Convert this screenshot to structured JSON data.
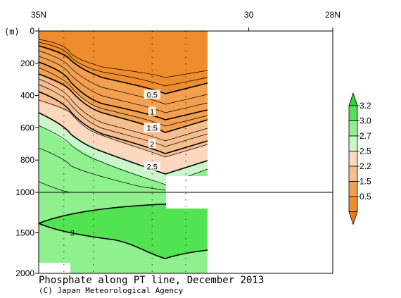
{
  "chart_data": {
    "type": "contour",
    "title": "Phosphate along PT line, December 2013",
    "credit": "(C) Japan Meteorological Agency",
    "y_unit_label": "(m)",
    "x_ticks": [
      {
        "lat": 35,
        "label": "35N"
      },
      {
        "lat": 30,
        "label": "30"
      },
      {
        "lat": 28,
        "label": "28N"
      }
    ],
    "y_ticks_upper": [
      {
        "depth": 0,
        "label": "0"
      },
      {
        "depth": 200,
        "label": "200"
      },
      {
        "depth": 400,
        "label": "400"
      },
      {
        "depth": 600,
        "label": "600"
      },
      {
        "depth": 800,
        "label": "800"
      },
      {
        "depth": 1000,
        "label": "1000"
      }
    ],
    "y_ticks_lower": [
      {
        "depth": 1500,
        "label": "1500"
      },
      {
        "depth": 2000,
        "label": "2000"
      }
    ],
    "xlim": [
      35,
      28
    ],
    "ylim_upper": [
      0,
      1000
    ],
    "ylim_lower": [
      1000,
      2000
    ],
    "stations_lat": [
      35,
      34.4,
      33.7,
      32.3,
      31.5
    ],
    "contour_labels": [
      {
        "text": "0.5",
        "lat": 32.3,
        "depth": 395
      },
      {
        "text": "1",
        "lat": 32.3,
        "depth": 500
      },
      {
        "text": "1.5",
        "lat": 32.3,
        "depth": 600
      },
      {
        "text": "2",
        "lat": 32.3,
        "depth": 700
      },
      {
        "text": "2.5",
        "lat": 32.3,
        "depth": 840
      },
      {
        "text": "3",
        "lat": 34.2,
        "depth": 1500
      }
    ],
    "colorbar": {
      "labels": [
        "3.2",
        "3.0",
        "2.7",
        "2.5",
        "2.2",
        "1.5",
        "0.5"
      ],
      "colors": [
        "#31d431",
        "#52e352",
        "#8ef18e",
        "#c9f7c9",
        "#fad7bd",
        "#f6be8e",
        "#f29f4f",
        "#ef8c2c",
        "#ec7a1b"
      ]
    }
  }
}
